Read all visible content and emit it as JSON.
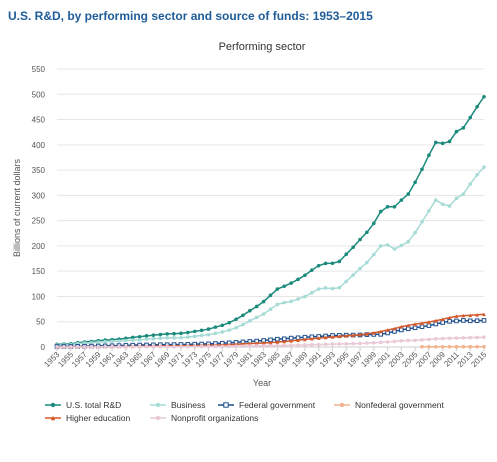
{
  "chart_data": {
    "type": "line",
    "title": "U.S. R&D, by performing sector and source of funds: 1953–2015",
    "subtitle": "Performing sector",
    "x_label": "Year",
    "y_label": "Billions of current dollars",
    "x": [
      1953,
      1954,
      1955,
      1956,
      1957,
      1958,
      1959,
      1960,
      1961,
      1962,
      1963,
      1964,
      1965,
      1966,
      1967,
      1968,
      1969,
      1970,
      1971,
      1972,
      1973,
      1974,
      1975,
      1976,
      1977,
      1978,
      1979,
      1980,
      1981,
      1982,
      1983,
      1984,
      1985,
      1986,
      1987,
      1988,
      1989,
      1990,
      1991,
      1992,
      1993,
      1994,
      1995,
      1996,
      1997,
      1998,
      1999,
      2000,
      2001,
      2002,
      2003,
      2004,
      2005,
      2006,
      2007,
      2008,
      2009,
      2010,
      2011,
      2012,
      2013,
      2014,
      2015
    ],
    "xlim": [
      1953,
      2015
    ],
    "xticks": [
      1953,
      1955,
      1957,
      1959,
      1961,
      1963,
      1965,
      1967,
      1969,
      1971,
      1973,
      1975,
      1977,
      1979,
      1981,
      1983,
      1985,
      1987,
      1989,
      1991,
      1993,
      1995,
      1997,
      1999,
      2001,
      2003,
      2005,
      2007,
      2009,
      2011,
      2013,
      2015
    ],
    "ylim": [
      0,
      550
    ],
    "yticks": [
      0,
      50,
      100,
      150,
      200,
      250,
      300,
      350,
      400,
      450,
      500,
      550
    ],
    "grid": true,
    "series": [
      {
        "name": "U.S. total R&D",
        "color": "#1b8a7c",
        "marker": "circle",
        "values": [
          5.2,
          5.7,
          6.3,
          8.5,
          9.9,
          10.9,
          12.5,
          13.7,
          14.6,
          15.6,
          17.1,
          19.0,
          20.3,
          22.1,
          23.3,
          24.7,
          25.9,
          26.3,
          27.0,
          28.7,
          30.9,
          33.0,
          35.4,
          39.2,
          43.0,
          48.1,
          54.8,
          62.7,
          71.8,
          80.2,
          89.8,
          102.2,
          114.7,
          120.2,
          126.4,
          133.9,
          141.9,
          152.0,
          160.9,
          165.4,
          165.7,
          169.2,
          183.6,
          197.3,
          212.7,
          226.9,
          244.7,
          267.9,
          277.4,
          277.4,
          290.6,
          302.5,
          325.9,
          351.6,
          379.4,
          404.8,
          402.9,
          406.6,
          426.2,
          433.6,
          454.0,
          475.4,
          495.1
        ]
      },
      {
        "name": "Business",
        "color": "#a6dbd6",
        "marker": "circle",
        "values": [
          3.6,
          4.1,
          4.6,
          6.6,
          7.7,
          8.4,
          9.6,
          10.5,
          11.0,
          11.5,
          12.6,
          13.5,
          14.2,
          15.5,
          16.4,
          17.4,
          18.3,
          18.1,
          18.3,
          19.6,
          21.2,
          22.9,
          24.2,
          26.9,
          29.8,
          33.3,
          38.2,
          44.5,
          51.8,
          58.6,
          65.3,
          74.8,
          84.2,
          87.8,
          90.2,
          94.9,
          99.9,
          107.4,
          114.7,
          116.8,
          115.4,
          117.4,
          129.8,
          142.4,
          155.4,
          167.1,
          182.8,
          199.9,
          202.0,
          193.9,
          200.7,
          208.3,
          226.2,
          247.7,
          269.3,
          290.7,
          282.4,
          278.9,
          294.1,
          302.3,
          322.5,
          340.7,
          355.8
        ]
      },
      {
        "name": "Federal government",
        "color": "#1f4f8f",
        "marker": "square",
        "values": [
          1.0,
          1.1,
          1.1,
          1.3,
          1.5,
          1.7,
          2.0,
          2.2,
          2.5,
          2.8,
          3.2,
          3.6,
          3.9,
          4.1,
          4.3,
          4.5,
          4.6,
          4.8,
          5.0,
          5.3,
          5.6,
          5.9,
          6.3,
          6.9,
          7.5,
          8.3,
          9.1,
          10.1,
          11.0,
          11.8,
          12.9,
          14.2,
          15.5,
          16.3,
          17.6,
          18.3,
          19.4,
          20.2,
          20.9,
          21.8,
          22.8,
          23.0,
          23.4,
          23.6,
          23.8,
          24.5,
          24.9,
          25.1,
          27.8,
          30.9,
          33.8,
          36.1,
          38.1,
          40.2,
          42.3,
          45.6,
          48.4,
          50.8,
          51.6,
          52.5,
          51.8,
          52.0,
          52.6
        ]
      },
      {
        "name": "Nonfederal government",
        "color": "#f2b48f",
        "marker": "circle",
        "values": [
          null,
          null,
          null,
          null,
          null,
          null,
          null,
          null,
          null,
          null,
          null,
          null,
          null,
          null,
          null,
          null,
          null,
          null,
          null,
          null,
          null,
          null,
          null,
          null,
          null,
          null,
          null,
          null,
          null,
          null,
          null,
          null,
          null,
          null,
          null,
          null,
          null,
          null,
          null,
          null,
          null,
          null,
          null,
          null,
          null,
          null,
          null,
          null,
          null,
          null,
          null,
          null,
          null,
          0.4,
          0.4,
          0.4,
          0.5,
          0.5,
          0.6,
          0.6,
          0.6,
          0.6,
          0.6
        ]
      },
      {
        "name": "Higher education",
        "color": "#d4592b",
        "marker": "triangle",
        "values": [
          0.3,
          0.3,
          0.4,
          0.4,
          0.4,
          0.5,
          0.6,
          0.6,
          0.7,
          0.8,
          1.0,
          1.2,
          1.4,
          1.6,
          1.8,
          2.0,
          2.2,
          2.3,
          2.5,
          2.6,
          2.8,
          3.0,
          3.4,
          3.7,
          4.1,
          4.6,
          5.3,
          6.1,
          6.8,
          7.3,
          7.9,
          8.6,
          9.7,
          10.9,
          12.2,
          13.5,
          14.9,
          16.3,
          17.6,
          18.8,
          19.9,
          21.0,
          22.2,
          23.1,
          24.3,
          25.9,
          28.0,
          30.7,
          33.7,
          36.4,
          40.1,
          42.9,
          45.2,
          47.2,
          49.4,
          52.0,
          54.9,
          58.1,
          60.9,
          62.1,
          62.7,
          63.7,
          64.7
        ]
      },
      {
        "name": "Nonprofit organizations",
        "color": "#e9c8d8",
        "marker": "circle",
        "values": [
          0.1,
          0.1,
          0.1,
          0.1,
          0.2,
          0.2,
          0.2,
          0.2,
          0.3,
          0.3,
          0.3,
          0.4,
          0.4,
          0.4,
          0.5,
          0.5,
          0.6,
          0.6,
          0.7,
          0.7,
          0.8,
          0.9,
          1.0,
          1.1,
          1.2,
          1.4,
          1.6,
          1.7,
          1.9,
          2.1,
          2.3,
          2.5,
          2.7,
          3.0,
          3.3,
          3.6,
          4.0,
          4.4,
          4.8,
          5.2,
          5.6,
          5.9,
          6.2,
          6.5,
          7.0,
          7.6,
          8.3,
          9.0,
          10.1,
          11.1,
          12.3,
          12.9,
          13.2,
          14.0,
          15.0,
          16.1,
          16.7,
          17.3,
          17.6,
          18.1,
          18.6,
          18.9,
          19.4
        ]
      }
    ]
  }
}
